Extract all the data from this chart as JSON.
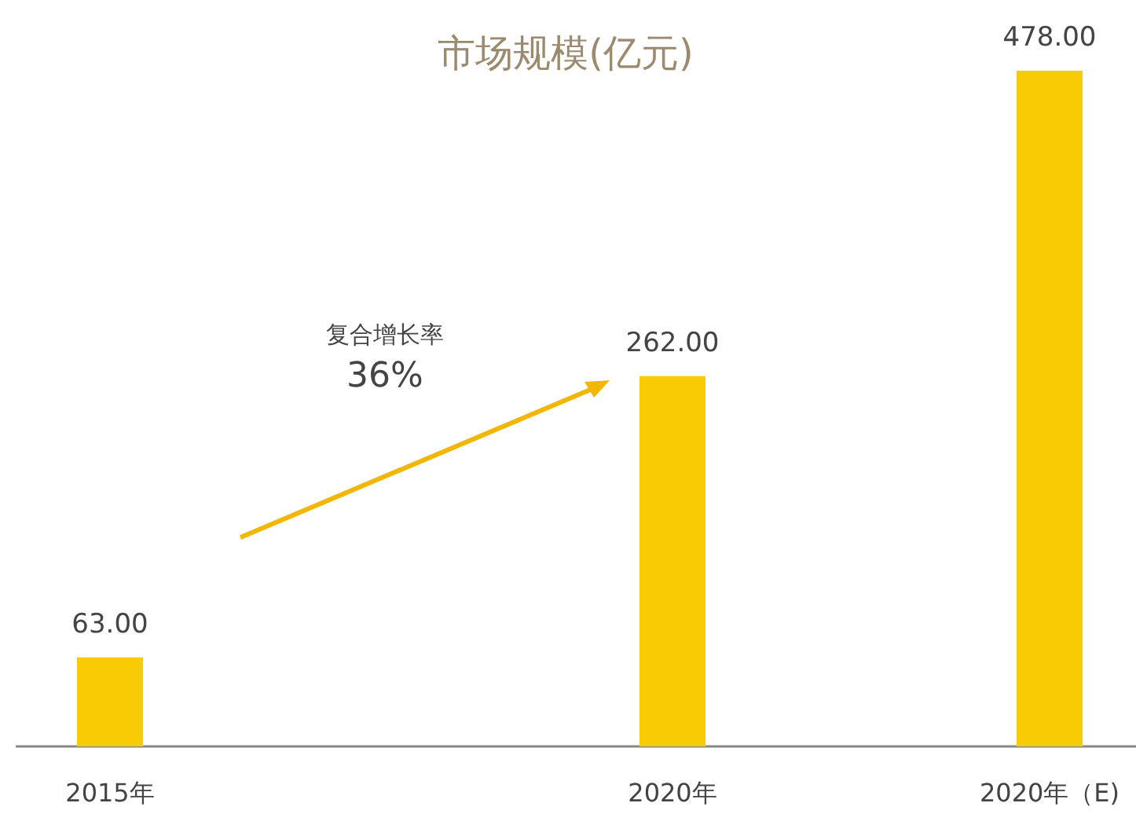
{
  "chart_data": {
    "type": "bar",
    "title": "市场规模(亿元)",
    "categories": [
      "2015年",
      "2020年",
      "2020年（E)"
    ],
    "values": [
      63,
      262,
      478
    ],
    "color": "#f9cb05",
    "value_labels": [
      "63.00",
      "262.00",
      "478.00"
    ],
    "annotations": [
      "复合增长率",
      "36%"
    ]
  }
}
